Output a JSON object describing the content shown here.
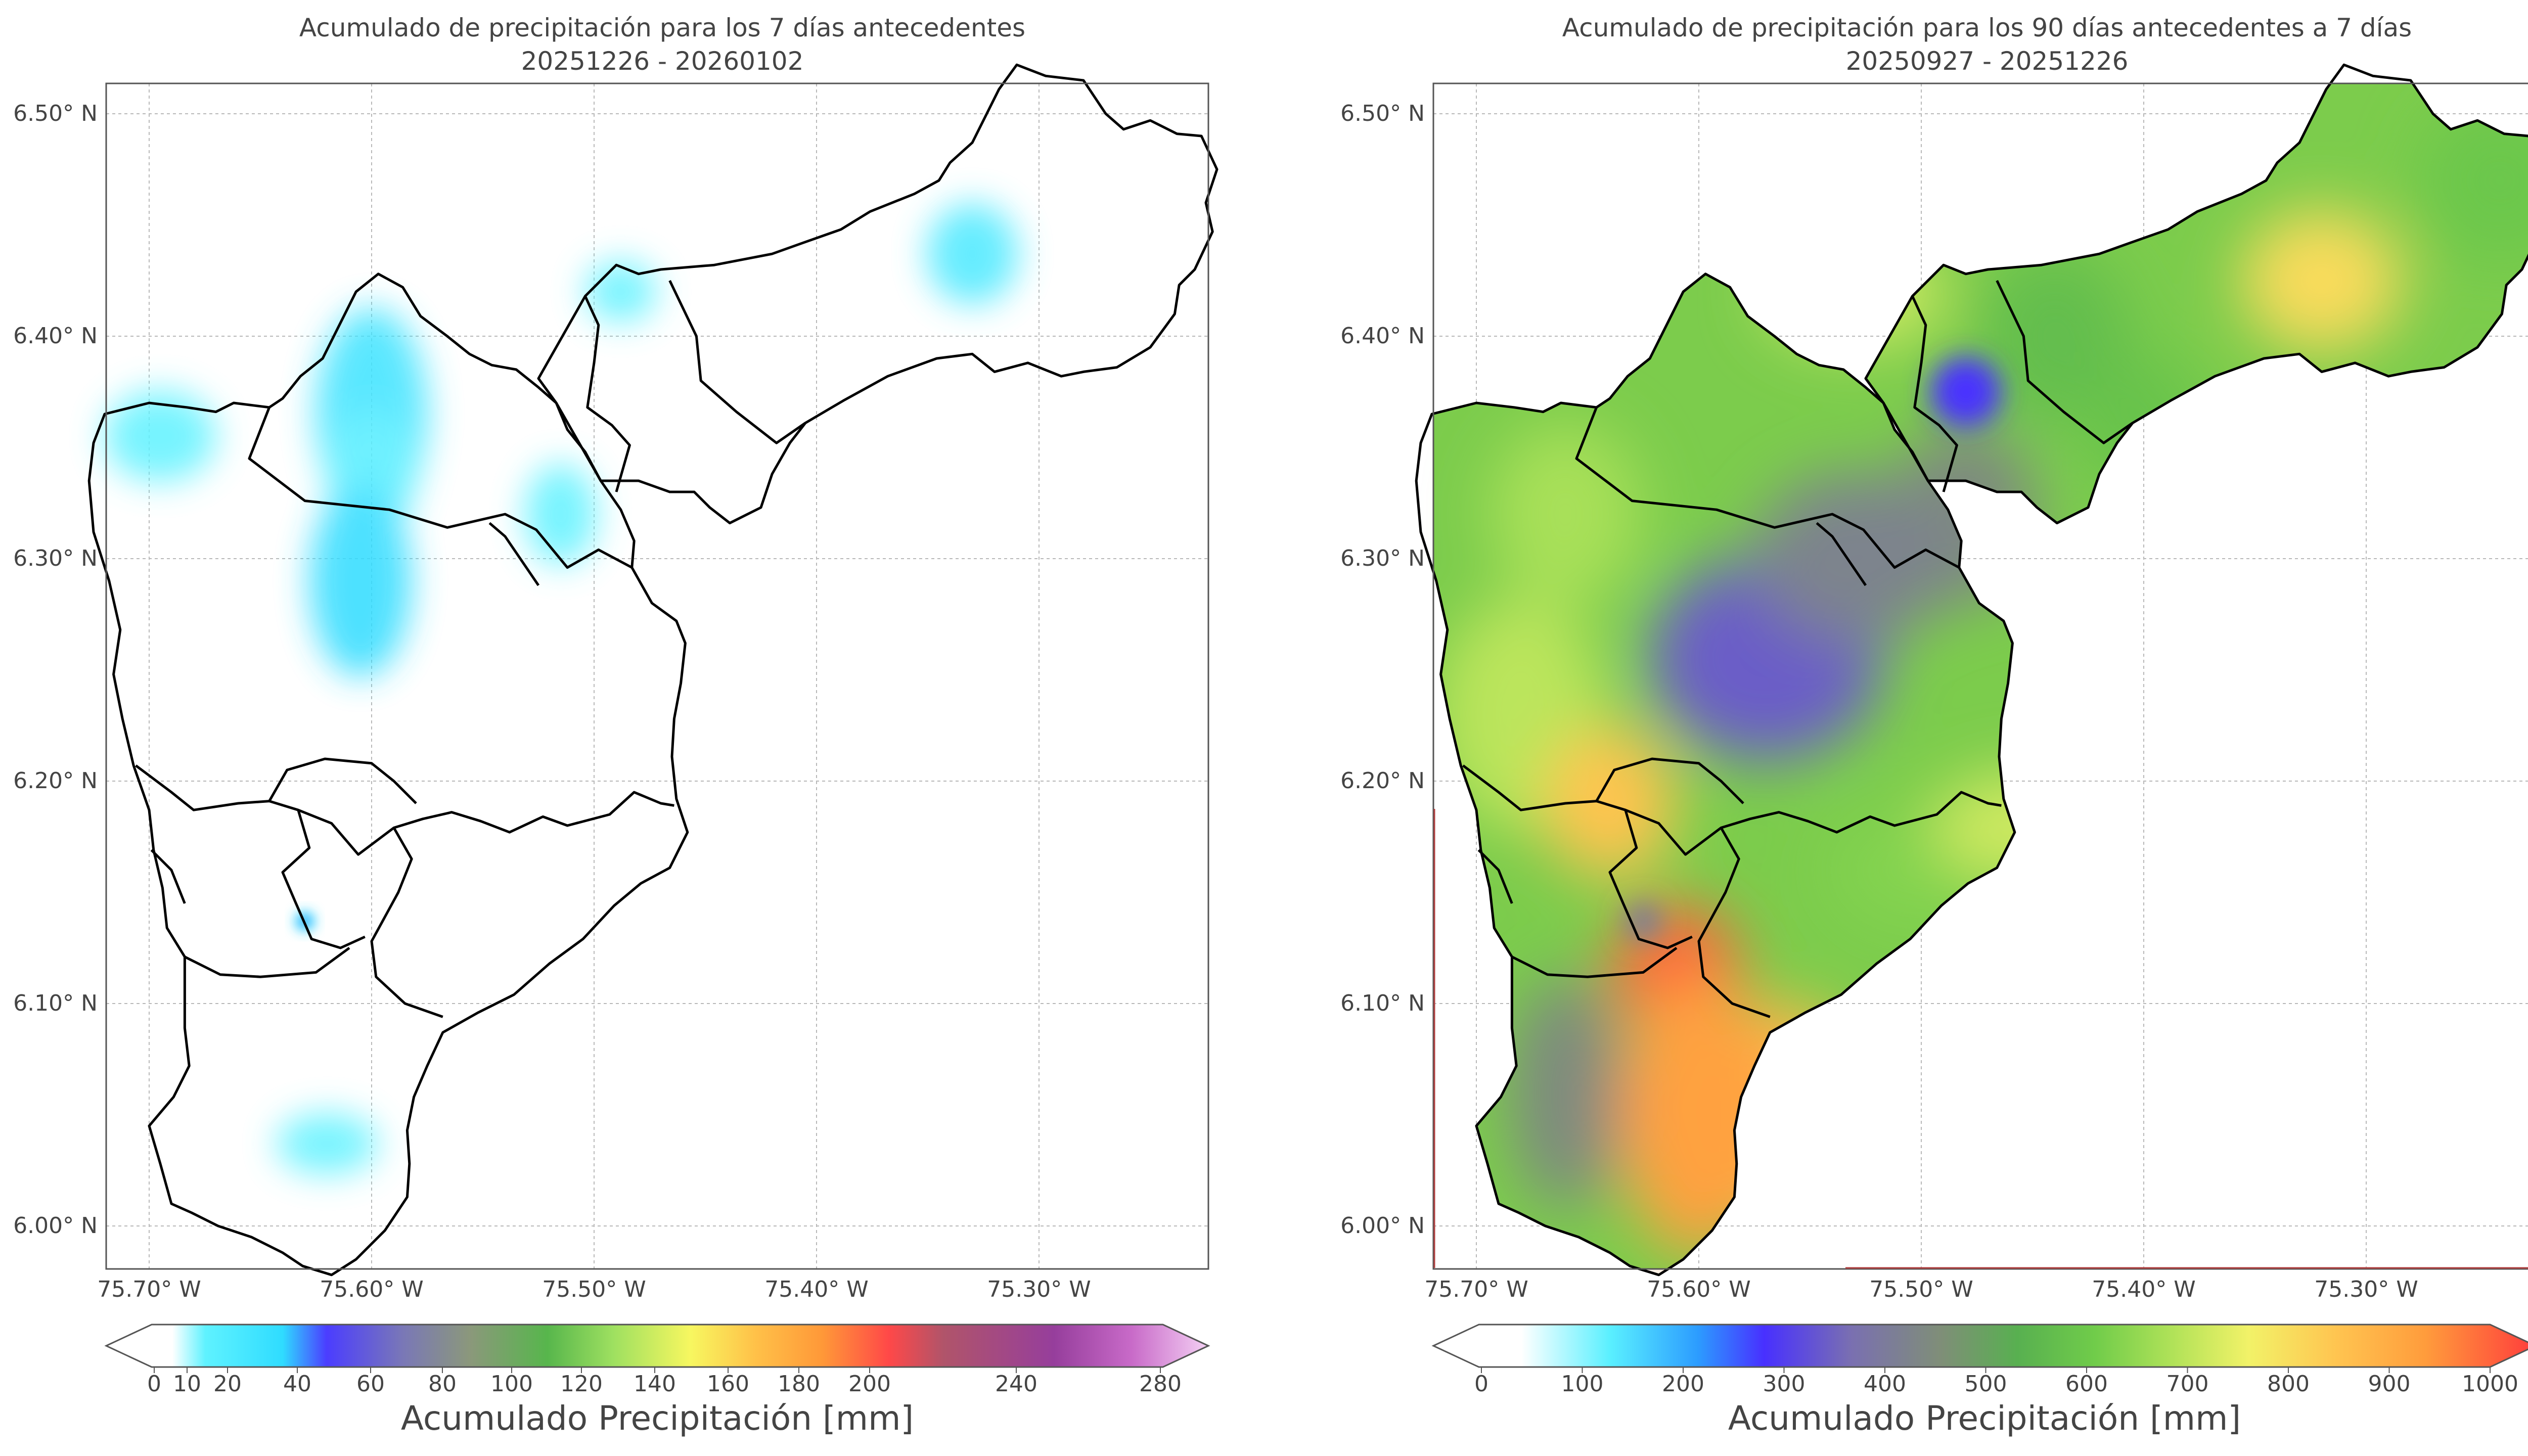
{
  "colors": {
    "left_palette": [
      "#ffffff",
      "#ffffff",
      "#e6fbff",
      "#5ff2ff",
      "#2fdcff",
      "#4b3dff",
      "#7a72c4",
      "#8c9c7c",
      "#6fc043",
      "#4cc055",
      "#9ee060",
      "#f7f760",
      "#ffc048",
      "#ff9838",
      "#ff4848",
      "#b04a7a",
      "#8e3e98",
      "#c86ac8",
      "#f0c8f0"
    ],
    "right_palette": [
      "#ffffff",
      "#e8fdff",
      "#5af0ff",
      "#2c9cff",
      "#4830ff",
      "#7a70b0",
      "#7f8e78",
      "#58b050",
      "#70cc4a",
      "#a8e058",
      "#f2f268",
      "#ffc450",
      "#ff9c3c",
      "#ff3c3c"
    ]
  },
  "maps": [
    {
      "title_line1": "Acumulado de precipitación para los 7 días antecedentes",
      "title_line2": "20251226 - 20260102",
      "x_ticks": [
        "75.70° W",
        "75.60° W",
        "75.50° W",
        "75.40° W",
        "75.30° W"
      ],
      "y_ticks": [
        "6.50° N",
        "6.40° N",
        "6.30° N",
        "6.20° N",
        "6.10° N",
        "6.00° N"
      ],
      "colorbar_ticks": [
        "0",
        "10",
        "20",
        "40",
        "60",
        "80",
        "100",
        "120",
        "140",
        "160",
        "180",
        "200",
        "240",
        "280"
      ],
      "colorbar_title": "Acumulado Precipitación [mm]",
      "rain_blobs": [
        {
          "lon": -75.6,
          "lat": 6.365,
          "value": 25
        },
        {
          "lon": -75.6,
          "lat": 6.34,
          "value": 20
        },
        {
          "lon": -75.605,
          "lat": 6.29,
          "value": 28
        },
        {
          "lon": -75.695,
          "lat": 6.355,
          "value": 18
        },
        {
          "lon": -75.488,
          "lat": 6.42,
          "value": 18
        },
        {
          "lon": -75.515,
          "lat": 6.32,
          "value": 18
        },
        {
          "lon": -75.33,
          "lat": 6.437,
          "value": 22
        },
        {
          "lon": -75.62,
          "lat": 6.037,
          "value": 18
        },
        {
          "lon": -75.63,
          "lat": 6.137,
          "value": 40
        }
      ]
    },
    {
      "title_line1": "Acumulado de precipitación para los 90 días antecedentes a 7 días",
      "title_line2": "20250927 - 20251226",
      "x_ticks": [
        "75.70° W",
        "75.60° W",
        "75.50° W",
        "75.40° W",
        "75.30° W"
      ],
      "y_ticks": [
        "6.50° N",
        "6.40° N",
        "6.30° N",
        "6.20° N",
        "6.10° N",
        "6.00° N"
      ],
      "colorbar_ticks": [
        "0",
        "100",
        "200",
        "300",
        "400",
        "500",
        "600",
        "700",
        "800",
        "900",
        "1000"
      ],
      "colorbar_title": "Acumulado Precipitación [mm]",
      "rain_blobs": [
        {
          "lon": -75.48,
          "lat": 6.375,
          "value": 300
        },
        {
          "lon": -75.57,
          "lat": 6.255,
          "value": 370
        },
        {
          "lon": -75.53,
          "lat": 6.3,
          "value": 450
        },
        {
          "lon": -75.64,
          "lat": 6.19,
          "value": 800
        },
        {
          "lon": -75.61,
          "lat": 6.115,
          "value": 950
        },
        {
          "lon": -75.6,
          "lat": 6.05,
          "value": 870
        },
        {
          "lon": -75.32,
          "lat": 6.425,
          "value": 760
        },
        {
          "lon": -75.45,
          "lat": 6.18,
          "value": 700
        },
        {
          "lon": -75.66,
          "lat": 6.32,
          "value": 680
        },
        {
          "lon": -75.625,
          "lat": 6.137,
          "value": 430
        }
      ]
    }
  ]
}
